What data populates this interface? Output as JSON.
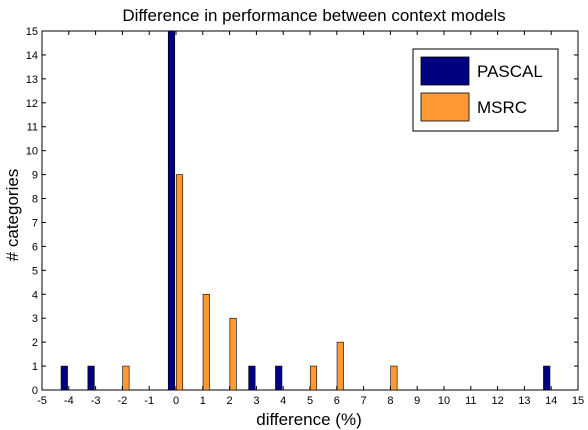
{
  "chart_data": {
    "type": "bar",
    "title": "Difference in performance between context models",
    "xlabel": "difference (%)",
    "ylabel": "# categories",
    "xlim": [
      -5,
      15
    ],
    "ylim": [
      0,
      15
    ],
    "x_ticks": [
      "-5",
      "-4",
      "-3",
      "-2",
      "-1",
      "0",
      "1",
      "2",
      "3",
      "4",
      "5",
      "6",
      "7",
      "8",
      "9",
      "10",
      "11",
      "12",
      "13",
      "14",
      "15"
    ],
    "y_ticks": [
      "0",
      "1",
      "2",
      "3",
      "4",
      "5",
      "6",
      "7",
      "8",
      "9",
      "10",
      "11",
      "12",
      "13",
      "14",
      "15"
    ],
    "legend_position": "top-right",
    "grid": false,
    "series": [
      {
        "name": "PASCAL",
        "color": "#000080",
        "points": [
          {
            "x": -4,
            "y": 1
          },
          {
            "x": -3,
            "y": 1
          },
          {
            "x": 0,
            "y": 15
          },
          {
            "x": 3,
            "y": 1
          },
          {
            "x": 4,
            "y": 1
          },
          {
            "x": 14,
            "y": 1
          }
        ]
      },
      {
        "name": "MSRC",
        "color": "#ff9933",
        "points": [
          {
            "x": -2,
            "y": 1
          },
          {
            "x": 0,
            "y": 9
          },
          {
            "x": 1,
            "y": 4
          },
          {
            "x": 2,
            "y": 3
          },
          {
            "x": 5,
            "y": 1
          },
          {
            "x": 6,
            "y": 2
          },
          {
            "x": 8,
            "y": 1
          }
        ]
      }
    ]
  }
}
